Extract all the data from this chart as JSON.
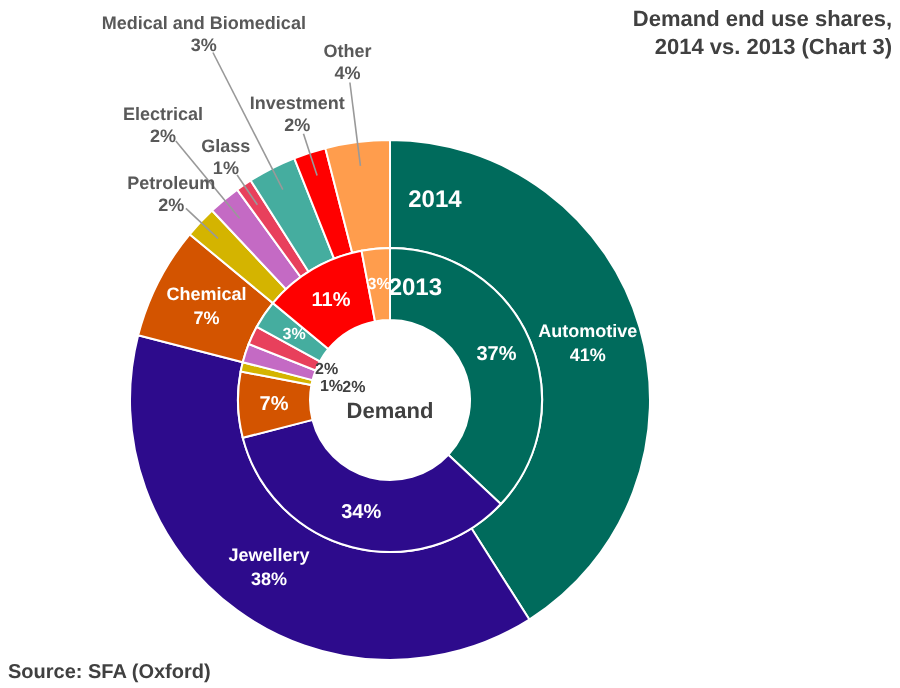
{
  "chart_data": {
    "type": "donut",
    "title": "Demand end use shares,\n2014  vs. 2013 (Chart 3)",
    "categories": [
      "Automotive",
      "Jewellery",
      "Chemical",
      "Petroleum",
      "Electrical",
      "Glass",
      "Medical and Biomedical",
      "Investment",
      "Other"
    ],
    "colors": [
      "#006b5c",
      "#2d0b8c",
      "#d35400",
      "#d4b400",
      "#c46ac4",
      "#e8405c",
      "#45ad9f",
      "#ff0000",
      "#ff9d4d"
    ],
    "series": [
      {
        "name": "2014",
        "values": [
          41,
          38,
          7,
          2,
          2,
          1,
          3,
          2,
          4
        ],
        "value_labels": [
          "41%",
          "38%",
          "7%",
          "2%",
          "2%",
          "1%",
          "3%",
          "2%",
          "4%"
        ]
      },
      {
        "name": "2013",
        "values": [
          37,
          34,
          7,
          1,
          2,
          2,
          3,
          11,
          3
        ],
        "value_labels": [
          "37%",
          "34%",
          "7%",
          "1%",
          "2%",
          "2%",
          "3%",
          "11%",
          "3%"
        ]
      }
    ],
    "annotations": [
      "Demand",
      "Source: SFA (Oxford)"
    ]
  }
}
